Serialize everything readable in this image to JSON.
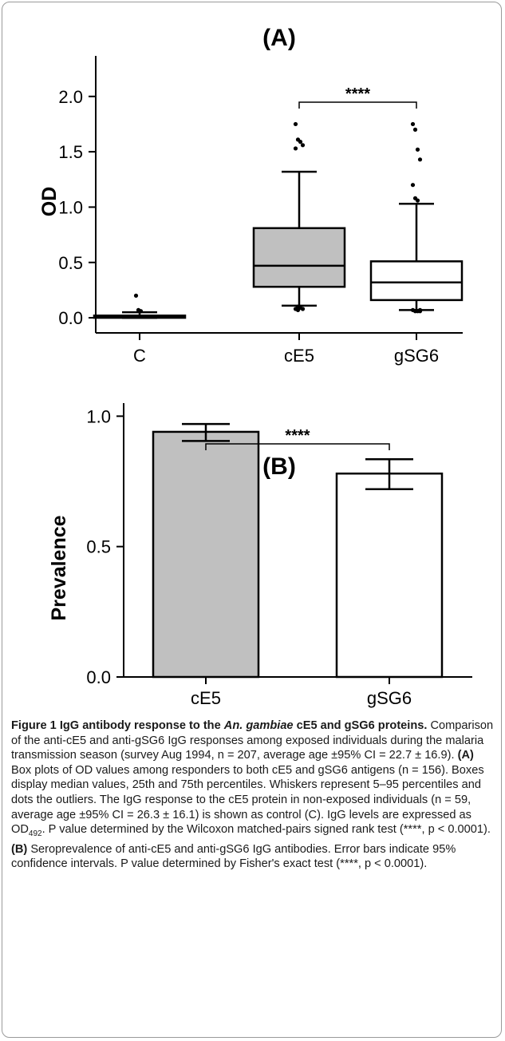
{
  "chart_data": [
    {
      "type": "box",
      "title": "(A)",
      "ylabel": "OD",
      "ylim": [
        -0.05,
        2.15
      ],
      "yticks": [
        0.0,
        0.5,
        1.0,
        1.5,
        2.0
      ],
      "ytick_labels": [
        "0.0",
        "0.5",
        "1.0",
        "1.5",
        "2.0"
      ],
      "categories": [
        "C",
        "cE5",
        "gSG6"
      ],
      "boxes": [
        {
          "name": "C",
          "whisker_low": 0.0,
          "q1": 0.0,
          "median": 0.01,
          "q3": 0.02,
          "whisker_high": 0.05,
          "fill": "#b5b5b5",
          "outliers": [
            0.2,
            0.07,
            0.06
          ]
        },
        {
          "name": "cE5",
          "whisker_low": 0.11,
          "q1": 0.28,
          "median": 0.47,
          "q3": 0.81,
          "whisker_high": 1.32,
          "fill": "#c0c0c0",
          "outliers": [
            1.75,
            1.61,
            1.59,
            1.56,
            1.53,
            0.1,
            0.09,
            0.08,
            0.08,
            0.07
          ]
        },
        {
          "name": "gSG6",
          "whisker_low": 0.07,
          "q1": 0.16,
          "median": 0.32,
          "q3": 0.51,
          "whisker_high": 1.03,
          "fill": "#ffffff",
          "outliers": [
            1.75,
            1.7,
            1.52,
            1.43,
            1.2,
            1.08,
            1.06,
            0.07,
            0.07,
            0.06,
            0.06,
            0.06
          ]
        }
      ],
      "significance": {
        "from": "cE5",
        "to": "gSG6",
        "label": "****"
      }
    },
    {
      "type": "bar",
      "title": "(B)",
      "ylabel": "Prevalence",
      "ylim": [
        0.0,
        1.05
      ],
      "yticks": [
        0.0,
        0.5,
        1.0
      ],
      "ytick_labels": [
        "0.0",
        "0.5",
        "1.0"
      ],
      "categories": [
        "cE5",
        "gSG6"
      ],
      "values": [
        0.94,
        0.78
      ],
      "error_low": [
        0.905,
        0.72
      ],
      "error_high": [
        0.97,
        0.835
      ],
      "fills": [
        "#c0c0c0",
        "#ffffff"
      ],
      "significance": {
        "from": "cE5",
        "to": "gSG6",
        "label": "****"
      }
    }
  ],
  "caption": {
    "title_prefix": "Figure 1 IgG antibody response to the ",
    "title_species": "An. gambiae",
    "title_suffix": " cE5 and gSG6 proteins.",
    "text1": " Comparison of the anti-cE5 and anti-gSG6 IgG responses among exposed individuals during the malaria transmission season (survey Aug 1994, n = 207, average age ±95% CI = 22.7 ± 16.9). ",
    "label_a": "(A)",
    "text2": " Box plots of OD values among responders to both cE5 and gSG6 antigens (n = 156). Boxes display median values, 25th and 75th percentiles. Whiskers represent 5–95 percentiles and dots the outliers. The IgG response to the cE5 protein in non-exposed individuals (n = 59, average age ±95% CI = 26.3 ± 16.1) is shown as control (C). IgG levels are expressed as OD",
    "od_sub": "492",
    "text3": ". P value determined by the Wilcoxon matched-pairs signed rank test (****, p < 0.0001). ",
    "label_b": "(B)",
    "text4": " Seroprevalence of anti-cE5 and anti-gSG6 IgG antibodies. Error bars indicate 95% confidence intervals. P value determined by Fisher's exact test (****, p < 0.0001)."
  }
}
